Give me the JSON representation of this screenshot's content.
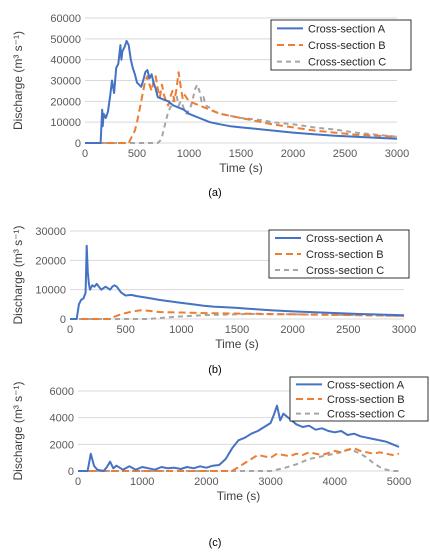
{
  "figure": {
    "panel_labels": [
      "(a)",
      "(b)",
      "(c)"
    ]
  },
  "colors": {
    "series_a": "#4472C4",
    "series_b": "#ED7D31",
    "series_c": "#A5A5A5",
    "grid": "#D9D9D9",
    "tick_text": "#595959"
  },
  "chart_data": [
    {
      "type": "line",
      "panel": "(a)",
      "title": "",
      "xlabel": "Time (s)",
      "ylabel": "Discharge (m³ s⁻¹)",
      "xlim": [
        0,
        3000
      ],
      "ylim": [
        0,
        60000
      ],
      "xticks": [
        0,
        500,
        1000,
        1500,
        2000,
        2500,
        3000
      ],
      "yticks": [
        0,
        10000,
        20000,
        30000,
        40000,
        50000,
        60000
      ],
      "grid": "horizontal",
      "legend_position": "top-right",
      "series": [
        {
          "name": "Cross-section A",
          "style": "solid",
          "x": [
            0,
            150,
            165,
            170,
            180,
            200,
            220,
            240,
            260,
            280,
            300,
            320,
            340,
            350,
            360,
            380,
            400,
            420,
            440,
            460,
            480,
            500,
            520,
            540,
            560,
            580,
            600,
            620,
            640,
            660,
            680,
            700,
            750,
            800,
            850,
            900,
            950,
            1000,
            1100,
            1200,
            1300,
            1400,
            1500,
            1600,
            1800,
            2000,
            2200,
            2400,
            2600,
            2800,
            3000
          ],
          "y": [
            0,
            0,
            16000,
            8000,
            14000,
            12000,
            15000,
            22000,
            30000,
            24000,
            36000,
            38000,
            47000,
            40000,
            44000,
            46000,
            49000,
            47000,
            40000,
            36000,
            33000,
            29000,
            28000,
            27000,
            30000,
            34000,
            35000,
            31000,
            33000,
            29000,
            26000,
            22000,
            21000,
            20000,
            18000,
            17000,
            16000,
            14000,
            12000,
            10000,
            9000,
            8000,
            7500,
            7000,
            6000,
            5000,
            4200,
            3500,
            3000,
            2500,
            2000
          ]
        },
        {
          "name": "Cross-section B",
          "style": "dashed",
          "x": [
            0,
            420,
            440,
            460,
            480,
            500,
            520,
            540,
            560,
            580,
            600,
            620,
            640,
            660,
            680,
            700,
            720,
            740,
            760,
            780,
            800,
            820,
            840,
            860,
            880,
            900,
            920,
            940,
            960,
            1000,
            1100,
            1200,
            1300,
            1400,
            1500,
            1600,
            1800,
            2000,
            2200,
            2400,
            2600,
            2800,
            3000
          ],
          "y": [
            0,
            0,
            2000,
            4000,
            6000,
            10000,
            15000,
            20000,
            25000,
            30000,
            32000,
            28000,
            25000,
            30000,
            32000,
            26000,
            22000,
            28000,
            23000,
            20000,
            18000,
            22000,
            25000,
            20000,
            26000,
            34000,
            27000,
            21000,
            23000,
            20000,
            18000,
            16000,
            14000,
            13000,
            12000,
            11000,
            9000,
            7500,
            6000,
            5000,
            4000,
            3500,
            3000
          ]
        },
        {
          "name": "Cross-section C",
          "style": "dashed",
          "x": [
            0,
            700,
            720,
            740,
            760,
            780,
            800,
            820,
            840,
            860,
            880,
            900,
            920,
            940,
            960,
            980,
            1000,
            1020,
            1040,
            1060,
            1080,
            1100,
            1120,
            1140,
            1160,
            1200,
            1250,
            1300,
            1400,
            1500,
            1600,
            1700,
            1800,
            2000,
            2200,
            2400,
            2600,
            2800,
            3000
          ],
          "y": [
            0,
            0,
            1000,
            3000,
            7000,
            11000,
            15000,
            17000,
            19000,
            22000,
            23000,
            18000,
            20000,
            18000,
            15000,
            14000,
            16000,
            18000,
            22000,
            26000,
            28000,
            25000,
            20000,
            22000,
            18000,
            17000,
            15000,
            14000,
            13000,
            12000,
            11500,
            11000,
            10000,
            9000,
            7500,
            6500,
            5000,
            4000,
            3000
          ]
        }
      ]
    },
    {
      "type": "line",
      "panel": "(b)",
      "title": "",
      "xlabel": "Time (s)",
      "ylabel": "Discharge (m³ s⁻¹)",
      "xlim": [
        0,
        3000
      ],
      "ylim": [
        0,
        30000
      ],
      "xticks": [
        0,
        500,
        1000,
        1500,
        2000,
        2500,
        3000
      ],
      "yticks": [
        0,
        10000,
        20000,
        30000
      ],
      "grid": "horizontal",
      "legend_position": "top-right",
      "series": [
        {
          "name": "Cross-section A",
          "style": "solid",
          "x": [
            0,
            60,
            80,
            100,
            120,
            140,
            150,
            160,
            170,
            180,
            200,
            220,
            240,
            260,
            280,
            300,
            320,
            340,
            360,
            380,
            400,
            420,
            440,
            460,
            480,
            500,
            550,
            600,
            650,
            700,
            800,
            900,
            1000,
            1100,
            1200,
            1300,
            1400,
            1500,
            1600,
            1800,
            2000,
            2200,
            2400,
            2600,
            2800,
            3000
          ],
          "y": [
            0,
            0,
            5000,
            6500,
            7000,
            9000,
            25000,
            16000,
            12000,
            10000,
            11500,
            11000,
            12000,
            11000,
            10000,
            10500,
            11000,
            10500,
            10000,
            11000,
            11500,
            11000,
            10000,
            9000,
            8500,
            8000,
            8200,
            7800,
            7500,
            7200,
            6500,
            6000,
            5500,
            5000,
            4500,
            4200,
            4000,
            3800,
            3500,
            3000,
            2600,
            2300,
            2000,
            1700,
            1500,
            1300
          ]
        },
        {
          "name": "Cross-section B",
          "style": "dashed",
          "x": [
            0,
            350,
            400,
            450,
            500,
            550,
            600,
            650,
            700,
            750,
            800,
            900,
            1000,
            1200,
            1400,
            1600,
            1800,
            2000,
            2200,
            2400,
            2600,
            2800,
            3000
          ],
          "y": [
            0,
            0,
            800,
            1500,
            2000,
            2500,
            2800,
            3000,
            2800,
            2600,
            2400,
            2300,
            2200,
            2000,
            1900,
            1800,
            1700,
            1600,
            1500,
            1400,
            1300,
            1200,
            1100
          ]
        },
        {
          "name": "Cross-section C",
          "style": "dashed",
          "x": [
            0,
            700,
            800,
            900,
            1000,
            1100,
            1200,
            1300,
            1400,
            1500,
            1600,
            1800,
            2000,
            2200,
            2400,
            2600,
            2800,
            3000
          ],
          "y": [
            0,
            0,
            300,
            600,
            900,
            1100,
            1300,
            1400,
            1500,
            1600,
            1700,
            1650,
            1600,
            1500,
            1400,
            1300,
            1200,
            1000
          ]
        }
      ]
    },
    {
      "type": "line",
      "panel": "(c)",
      "title": "",
      "xlabel": "Time (s)",
      "ylabel": "Discharge (m³ s⁻¹)",
      "xlim": [
        0,
        5000
      ],
      "ylim": [
        0,
        6000
      ],
      "xticks": [
        0,
        1000,
        2000,
        3000,
        4000,
        5000
      ],
      "yticks": [
        0,
        2000,
        4000,
        6000
      ],
      "grid": "horizontal",
      "legend_position": "top-right",
      "series": [
        {
          "name": "Cross-section A",
          "style": "solid",
          "x": [
            0,
            150,
            200,
            250,
            300,
            400,
            450,
            500,
            550,
            600,
            700,
            800,
            900,
            1000,
            1100,
            1200,
            1300,
            1400,
            1500,
            1600,
            1700,
            1800,
            1900,
            2000,
            2100,
            2200,
            2300,
            2400,
            2500,
            2600,
            2700,
            2800,
            2900,
            3000,
            3050,
            3100,
            3150,
            3200,
            3300,
            3400,
            3500,
            3600,
            3700,
            3800,
            3900,
            4000,
            4100,
            4200,
            4300,
            4400,
            4500,
            4600,
            4700,
            4800,
            4900,
            5000
          ],
          "y": [
            0,
            0,
            1300,
            400,
            100,
            0,
            300,
            700,
            200,
            400,
            100,
            350,
            100,
            300,
            200,
            100,
            300,
            200,
            250,
            150,
            300,
            200,
            350,
            250,
            400,
            450,
            900,
            1700,
            2300,
            2500,
            2800,
            3000,
            3300,
            3600,
            4200,
            4900,
            3800,
            4300,
            3900,
            3500,
            3300,
            3400,
            3100,
            3200,
            3000,
            2900,
            3000,
            2700,
            2800,
            2600,
            2500,
            2400,
            2300,
            2200,
            2000,
            1800
          ]
        },
        {
          "name": "Cross-section B",
          "style": "dashed",
          "x": [
            0,
            2400,
            2500,
            2600,
            2700,
            2800,
            2900,
            3000,
            3100,
            3200,
            3300,
            3400,
            3500,
            3600,
            3700,
            3800,
            3900,
            4000,
            4100,
            4200,
            4300,
            4400,
            4500,
            4600,
            4700,
            4800,
            4900,
            5000
          ],
          "y": [
            0,
            0,
            300,
            600,
            900,
            1200,
            1100,
            1000,
            1300,
            1200,
            1100,
            1300,
            1200,
            1400,
            1300,
            1200,
            1350,
            1500,
            1400,
            1600,
            1700,
            1500,
            1400,
            1300,
            1400,
            1300,
            1200,
            1300
          ]
        },
        {
          "name": "Cross-section C",
          "style": "dashed",
          "x": [
            0,
            3000,
            3200,
            3400,
            3500,
            3600,
            3700,
            3800,
            3900,
            4000,
            4100,
            4200,
            4300,
            4400,
            4500,
            4600,
            4700,
            4800,
            4900,
            5000
          ],
          "y": [
            0,
            0,
            200,
            500,
            700,
            900,
            1000,
            1100,
            1200,
            1300,
            1400,
            1600,
            1500,
            1300,
            1000,
            600,
            300,
            100,
            0,
            0
          ]
        }
      ]
    }
  ]
}
